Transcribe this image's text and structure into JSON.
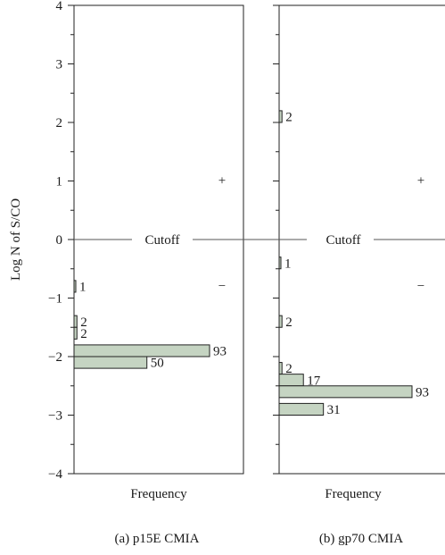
{
  "chart_data": {
    "type": "bar",
    "orientation": "horizontal",
    "ylabel": "Log N of S/CO",
    "ylim": [
      -4,
      4
    ],
    "yticks": [
      4,
      3,
      2,
      1,
      0,
      -1,
      -2,
      -3,
      -4
    ],
    "ytick_labels": [
      "4",
      "3",
      "2",
      "1",
      "0",
      "−1",
      "−2",
      "−3",
      "−4"
    ],
    "cutoff": {
      "value": 0,
      "label": "Cutoff"
    },
    "region_labels": {
      "above": "+",
      "below": "−"
    },
    "panels": [
      {
        "caption": "(a)  p15E CMIA",
        "xlabel": "Frequency",
        "bars": [
          {
            "y": -0.8,
            "count": 1
          },
          {
            "y": -1.4,
            "count": 2
          },
          {
            "y": -1.6,
            "count": 2
          },
          {
            "y": -1.9,
            "count": 93
          },
          {
            "y": -2.1,
            "count": 50
          }
        ]
      },
      {
        "caption": "(b)  gp70 CMIA",
        "xlabel": "Frequency",
        "bars": [
          {
            "y": 2.1,
            "count": 2
          },
          {
            "y": -0.4,
            "count": 1
          },
          {
            "y": -1.4,
            "count": 2
          },
          {
            "y": -2.2,
            "count": 2
          },
          {
            "y": -2.4,
            "count": 17
          },
          {
            "y": -2.6,
            "count": 93
          },
          {
            "y": -2.9,
            "count": 31
          }
        ]
      }
    ]
  }
}
